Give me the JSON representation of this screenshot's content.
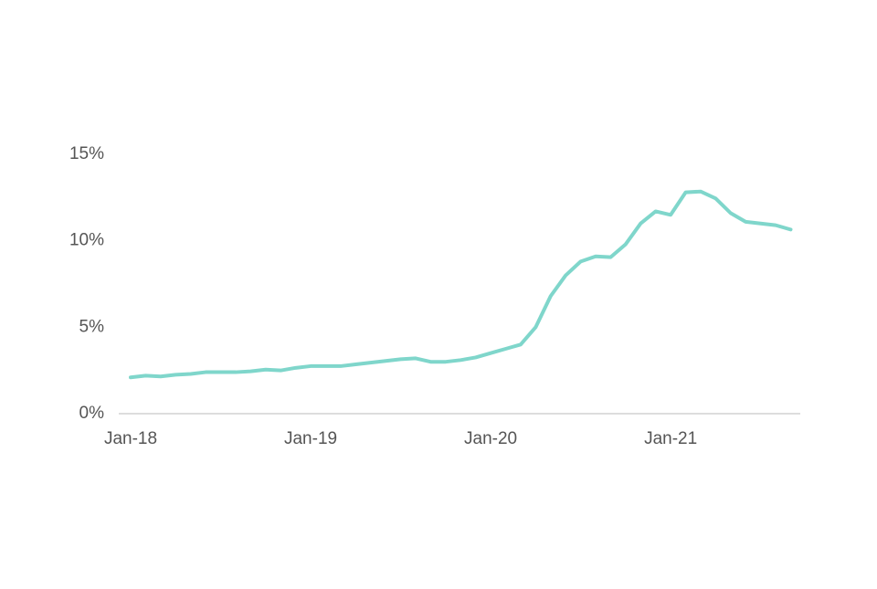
{
  "chart_data": {
    "type": "line",
    "categories": [
      "Jan-18",
      null,
      null,
      null,
      null,
      null,
      null,
      null,
      null,
      null,
      null,
      null,
      "Jan-19",
      null,
      null,
      null,
      null,
      null,
      null,
      null,
      null,
      null,
      null,
      null,
      "Jan-20",
      null,
      null,
      null,
      null,
      null,
      null,
      null,
      null,
      null,
      null,
      null,
      "Jan-21",
      null,
      null,
      null,
      null,
      null,
      null,
      null,
      null
    ],
    "series": [
      {
        "name": null,
        "color": "#7fd6cb",
        "values": [
          2.1,
          2.2,
          2.15,
          2.25,
          2.3,
          2.4,
          2.4,
          2.4,
          2.45,
          2.55,
          2.5,
          2.65,
          2.75,
          2.75,
          2.75,
          2.85,
          2.95,
          3.05,
          3.15,
          3.2,
          3.0,
          3.0,
          3.1,
          3.25,
          3.5,
          3.75,
          4.0,
          5.0,
          6.8,
          8.0,
          8.8,
          9.1,
          9.05,
          9.8,
          11.0,
          11.7,
          11.5,
          12.8,
          12.85,
          12.45,
          11.6,
          11.1,
          11.0,
          10.9,
          10.65
        ]
      }
    ],
    "ylim": [
      0,
      15
    ],
    "yticks": [
      {
        "value": 0,
        "label": "0%"
      },
      {
        "value": 5,
        "label": "5%"
      },
      {
        "value": 10,
        "label": "10%"
      },
      {
        "value": 15,
        "label": "15%"
      }
    ],
    "grid": false
  }
}
